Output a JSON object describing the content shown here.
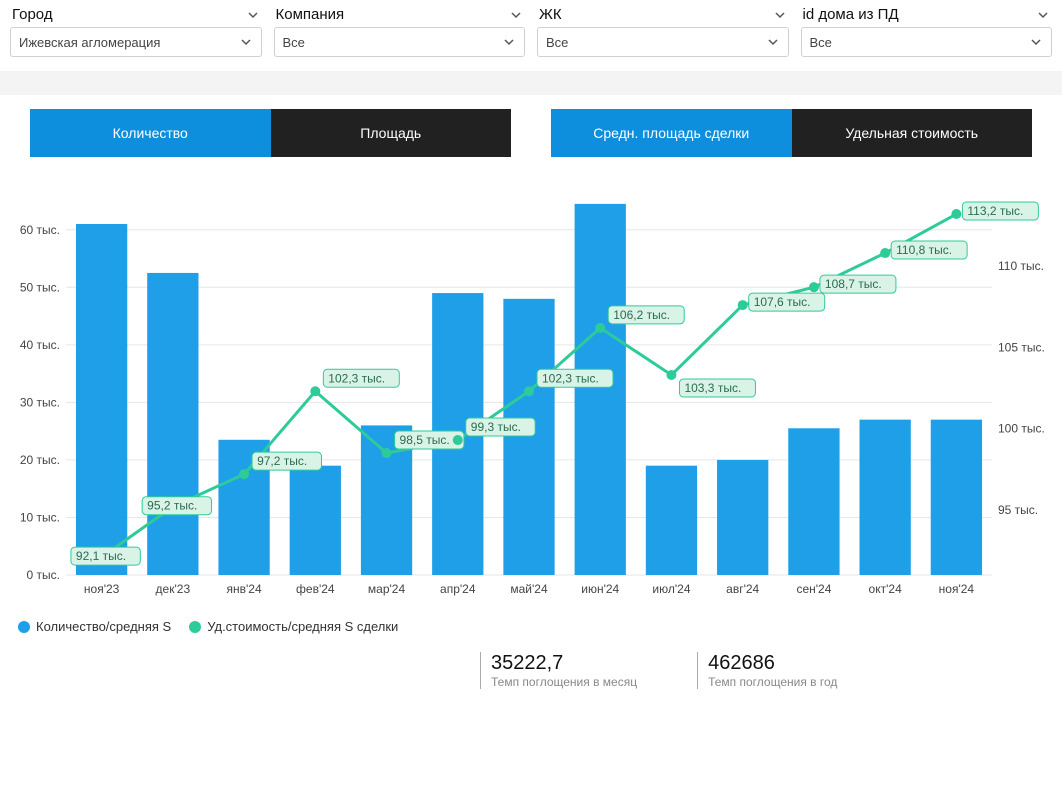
{
  "filters": [
    {
      "label": "Город",
      "value": "Ижевская агломерация"
    },
    {
      "label": "Компания",
      "value": "Все"
    },
    {
      "label": "ЖК",
      "value": "Все"
    },
    {
      "label": "id дома из ПД",
      "value": "Все"
    }
  ],
  "tab_groups": [
    {
      "tabs": [
        {
          "label": "Количество",
          "active": true
        },
        {
          "label": "Площадь",
          "active": false
        }
      ]
    },
    {
      "tabs": [
        {
          "label": "Средн. площадь сделки",
          "active": true
        },
        {
          "label": "Удельная стоимость",
          "active": false
        }
      ]
    }
  ],
  "chart": {
    "type": "bar+line",
    "categories": [
      "ноя'23",
      "дек'23",
      "янв'24",
      "фев'24",
      "мар'24",
      "апр'24",
      "май'24",
      "июн'24",
      "июл'24",
      "авг'24",
      "сен'24",
      "окт'24",
      "ноя'24"
    ],
    "bars": {
      "values": [
        61,
        52.5,
        23.5,
        19,
        26,
        49,
        48,
        64.5,
        19,
        20,
        25.5,
        27,
        27
      ],
      "color": "#1e9fe8",
      "y_axis": "left"
    },
    "line": {
      "values": [
        92.1,
        95.2,
        97.2,
        102.3,
        98.5,
        99.3,
        102.3,
        106.2,
        103.3,
        107.6,
        108.7,
        110.8,
        113.2
      ],
      "labels": [
        "92,1 тыс.",
        "95,2 тыс.",
        "97,2 тыс.",
        "102,3 тыс.",
        "98,5 тыс.",
        "99,3 тыс.",
        "102,3 тыс.",
        "106,2 тыс.",
        "103,3 тыс.",
        "107,6 тыс.",
        "108,7 тыс.",
        "110,8 тыс.",
        "113,2 тыс."
      ],
      "color": "#2ecb9a",
      "y_axis": "right",
      "marker": "circle",
      "marker_size": 5,
      "line_width": 3,
      "label_bg": "#d9f3e6",
      "label_text_color": "#2b6b53"
    },
    "left_axis": {
      "min": 0,
      "max": 65,
      "ticks": [
        0,
        10,
        20,
        30,
        40,
        50,
        60
      ],
      "tick_labels": [
        "0 тыс.",
        "10 тыс.",
        "20 тыс.",
        "30 тыс.",
        "40 тыс.",
        "50 тыс.",
        "60 тыс."
      ]
    },
    "right_axis": {
      "min": 91,
      "max": 114,
      "ticks": [
        95,
        100,
        105,
        110
      ],
      "tick_labels": [
        "95 тыс.",
        "100 тыс.",
        "105 тыс.",
        "110 тыс."
      ]
    },
    "bar_width_ratio": 0.72,
    "background": "#ffffff",
    "grid_color": "#e6e6e6"
  },
  "legend": [
    {
      "swatch": "square",
      "color": "#1e9fe8",
      "label": "Количество/средняя S"
    },
    {
      "swatch": "circle",
      "color": "#2ecb9a",
      "label": "Уд.стоимость/средняя S сделки"
    }
  ],
  "metrics": [
    {
      "value": "35222,7",
      "label": "Темп поглощения в месяц"
    },
    {
      "value": "462686",
      "label": "Темп поглощения в год"
    }
  ]
}
